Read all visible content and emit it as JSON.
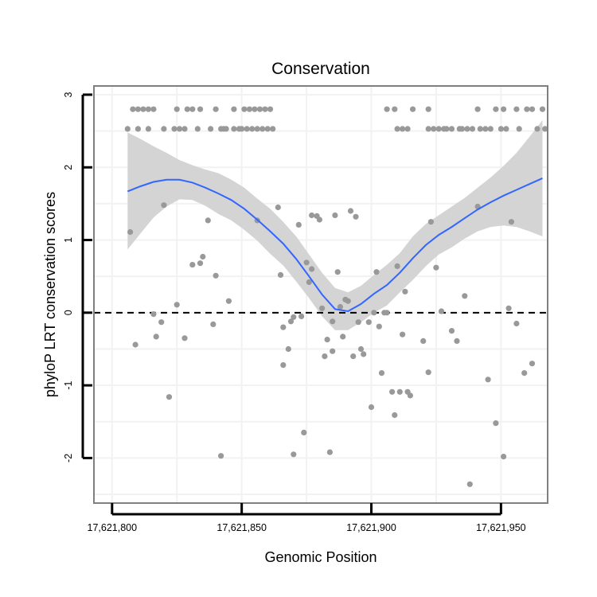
{
  "chart_data": {
    "type": "scatter",
    "title": "Conservation",
    "xlabel": "Genomic Position",
    "ylabel": "phyloP LRT conservation scores",
    "xlim": [
      17621793,
      17621968
    ],
    "ylim": [
      -2.62,
      3.12
    ],
    "x_ticks": [
      17621800,
      17621850,
      17621900,
      17621950
    ],
    "x_tick_labels": [
      "17,621,800",
      "17,621,850",
      "17,621,900",
      "17,621,950"
    ],
    "y_ticks": [
      -2,
      -1,
      0,
      1,
      2,
      3
    ],
    "y_tick_labels": [
      "-2",
      "-1",
      "0",
      "1",
      "2",
      "3"
    ],
    "grid": true,
    "reference_line": {
      "y": 0,
      "style": "dashed",
      "color": "#000000"
    },
    "colors": {
      "points": "#999999",
      "smooth": "#3366FF",
      "band": "#d4d4d4",
      "panel_border": "#7f7f7f",
      "grid": "#f2f2f2"
    },
    "series": [
      {
        "kind": "points",
        "points": [
          [
            17621806,
            2.53
          ],
          [
            17621808,
            2.8
          ],
          [
            17621810,
            2.53
          ],
          [
            17621810,
            2.8
          ],
          [
            17621812,
            2.8
          ],
          [
            17621814,
            2.53
          ],
          [
            17621814,
            2.8
          ],
          [
            17621816,
            2.8
          ],
          [
            17621820,
            2.53
          ],
          [
            17621824,
            2.53
          ],
          [
            17621825,
            2.8
          ],
          [
            17621826,
            2.53
          ],
          [
            17621828,
            2.53
          ],
          [
            17621829,
            2.8
          ],
          [
            17621831,
            2.8
          ],
          [
            17621833,
            2.53
          ],
          [
            17621834,
            2.8
          ],
          [
            17621838,
            2.53
          ],
          [
            17621840,
            2.8
          ],
          [
            17621842,
            2.53
          ],
          [
            17621843,
            2.53
          ],
          [
            17621844,
            2.53
          ],
          [
            17621847,
            2.8
          ],
          [
            17621847,
            2.53
          ],
          [
            17621849,
            2.53
          ],
          [
            17621850,
            2.53
          ],
          [
            17621851,
            2.8
          ],
          [
            17621852,
            2.53
          ],
          [
            17621853,
            2.8
          ],
          [
            17621854,
            2.53
          ],
          [
            17621855,
            2.8
          ],
          [
            17621856,
            2.53
          ],
          [
            17621857,
            2.8
          ],
          [
            17621858,
            2.53
          ],
          [
            17621859,
            2.8
          ],
          [
            17621860,
            2.53
          ],
          [
            17621861,
            2.8
          ],
          [
            17621862,
            2.53
          ],
          [
            17621906,
            2.8
          ],
          [
            17621909,
            2.8
          ],
          [
            17621910,
            2.53
          ],
          [
            17621912,
            2.53
          ],
          [
            17621914,
            2.53
          ],
          [
            17621916,
            2.8
          ],
          [
            17621922,
            2.8
          ],
          [
            17621922,
            2.53
          ],
          [
            17621924,
            2.53
          ],
          [
            17621926,
            2.53
          ],
          [
            17621928,
            2.53
          ],
          [
            17621929,
            2.53
          ],
          [
            17621931,
            2.53
          ],
          [
            17621934,
            2.53
          ],
          [
            17621935,
            2.53
          ],
          [
            17621937,
            2.53
          ],
          [
            17621939,
            2.53
          ],
          [
            17621941,
            2.8
          ],
          [
            17621942,
            2.53
          ],
          [
            17621944,
            2.53
          ],
          [
            17621946,
            2.53
          ],
          [
            17621948,
            2.8
          ],
          [
            17621950,
            2.53
          ],
          [
            17621951,
            2.8
          ],
          [
            17621952,
            2.53
          ],
          [
            17621956,
            2.8
          ],
          [
            17621957,
            2.53
          ],
          [
            17621960,
            2.8
          ],
          [
            17621962,
            2.8
          ],
          [
            17621964,
            2.53
          ],
          [
            17621966,
            2.8
          ],
          [
            17621967,
            2.53
          ],
          [
            17621807,
            1.11
          ],
          [
            17621809,
            -0.44
          ],
          [
            17621816,
            -0.02
          ],
          [
            17621817,
            -0.33
          ],
          [
            17621819,
            -0.13
          ],
          [
            17621820,
            1.48
          ],
          [
            17621822,
            -1.16
          ],
          [
            17621825,
            0.11
          ],
          [
            17621828,
            -0.35
          ],
          [
            17621831,
            0.66
          ],
          [
            17621834,
            0.68
          ],
          [
            17621835,
            0.77
          ],
          [
            17621837,
            1.27
          ],
          [
            17621839,
            -0.16
          ],
          [
            17621840,
            0.51
          ],
          [
            17621842,
            -1.97
          ],
          [
            17621845,
            0.16
          ],
          [
            17621856,
            1.27
          ],
          [
            17621864,
            1.45
          ],
          [
            17621865,
            0.52
          ],
          [
            17621866,
            -0.72
          ],
          [
            17621866,
            -0.2
          ],
          [
            17621868,
            -0.5
          ],
          [
            17621869,
            -0.12
          ],
          [
            17621870,
            -0.06
          ],
          [
            17621870,
            -1.95
          ],
          [
            17621872,
            1.21
          ],
          [
            17621873,
            -0.05
          ],
          [
            17621874,
            -1.65
          ],
          [
            17621875,
            0.69
          ],
          [
            17621876,
            0.42
          ],
          [
            17621877,
            1.34
          ],
          [
            17621877,
            0.6
          ],
          [
            17621879,
            1.33
          ],
          [
            17621880,
            1.28
          ],
          [
            17621881,
            0.06
          ],
          [
            17621882,
            -0.6
          ],
          [
            17621883,
            -0.37
          ],
          [
            17621884,
            -1.92
          ],
          [
            17621885,
            -0.12
          ],
          [
            17621885,
            -0.53
          ],
          [
            17621886,
            1.34
          ],
          [
            17621887,
            0.56
          ],
          [
            17621888,
            0.08
          ],
          [
            17621889,
            -0.33
          ],
          [
            17621890,
            0.18
          ],
          [
            17621891,
            0.16
          ],
          [
            17621892,
            1.4
          ],
          [
            17621893,
            -0.6
          ],
          [
            17621894,
            1.32
          ],
          [
            17621895,
            -0.13
          ],
          [
            17621896,
            -0.5
          ],
          [
            17621897,
            -0.57
          ],
          [
            17621899,
            -0.13
          ],
          [
            17621900,
            -1.3
          ],
          [
            17621901,
            0.0
          ],
          [
            17621902,
            0.56
          ],
          [
            17621903,
            -0.19
          ],
          [
            17621904,
            -0.83
          ],
          [
            17621905,
            -0.0
          ],
          [
            17621906,
            -0.0
          ],
          [
            17621908,
            -1.09
          ],
          [
            17621909,
            -1.41
          ],
          [
            17621910,
            0.64
          ],
          [
            17621911,
            -1.09
          ],
          [
            17621912,
            -0.3
          ],
          [
            17621913,
            0.29
          ],
          [
            17621914,
            -1.09
          ],
          [
            17621915,
            -1.14
          ],
          [
            17621920,
            -0.39
          ],
          [
            17621922,
            -0.82
          ],
          [
            17621923,
            1.25
          ],
          [
            17621925,
            0.62
          ],
          [
            17621927,
            0.02
          ],
          [
            17621931,
            -0.25
          ],
          [
            17621933,
            -0.39
          ],
          [
            17621936,
            0.23
          ],
          [
            17621938,
            -2.36
          ],
          [
            17621941,
            1.46
          ],
          [
            17621945,
            -0.92
          ],
          [
            17621948,
            -1.52
          ],
          [
            17621951,
            -1.98
          ],
          [
            17621953,
            0.06
          ],
          [
            17621954,
            1.25
          ],
          [
            17621956,
            -0.15
          ],
          [
            17621959,
            -0.83
          ],
          [
            17621962,
            -0.7
          ]
        ]
      },
      {
        "kind": "smooth",
        "x": [
          17621806,
          17621811,
          17621816,
          17621821,
          17621826,
          17621831,
          17621836,
          17621841,
          17621846,
          17621851,
          17621856,
          17621861,
          17621866,
          17621871,
          17621876,
          17621881,
          17621886,
          17621891,
          17621896,
          17621901,
          17621906,
          17621911,
          17621916,
          17621921,
          17621926,
          17621931,
          17621936,
          17621941,
          17621946,
          17621951,
          17621956,
          17621961,
          17621966
        ],
        "y": [
          1.67,
          1.74,
          1.8,
          1.83,
          1.83,
          1.79,
          1.72,
          1.64,
          1.55,
          1.43,
          1.28,
          1.12,
          0.95,
          0.74,
          0.5,
          0.25,
          0.05,
          0.02,
          0.12,
          0.26,
          0.38,
          0.55,
          0.75,
          0.93,
          1.07,
          1.18,
          1.3,
          1.42,
          1.52,
          1.61,
          1.69,
          1.77,
          1.85
        ],
        "upper": [
          2.48,
          2.39,
          2.29,
          2.2,
          2.1,
          2.03,
          1.97,
          1.92,
          1.83,
          1.72,
          1.57,
          1.43,
          1.25,
          1.05,
          0.8,
          0.55,
          0.34,
          0.28,
          0.37,
          0.52,
          0.66,
          0.82,
          1.05,
          1.22,
          1.34,
          1.46,
          1.58,
          1.72,
          1.86,
          2.02,
          2.2,
          2.42,
          2.65
        ],
        "lower": [
          0.87,
          1.09,
          1.31,
          1.46,
          1.56,
          1.55,
          1.47,
          1.36,
          1.27,
          1.14,
          0.99,
          0.81,
          0.65,
          0.43,
          0.2,
          -0.05,
          -0.24,
          -0.24,
          -0.13,
          0.0,
          0.1,
          0.28,
          0.45,
          0.64,
          0.8,
          0.9,
          1.02,
          1.12,
          1.18,
          1.2,
          1.18,
          1.12,
          1.05
        ]
      }
    ]
  }
}
